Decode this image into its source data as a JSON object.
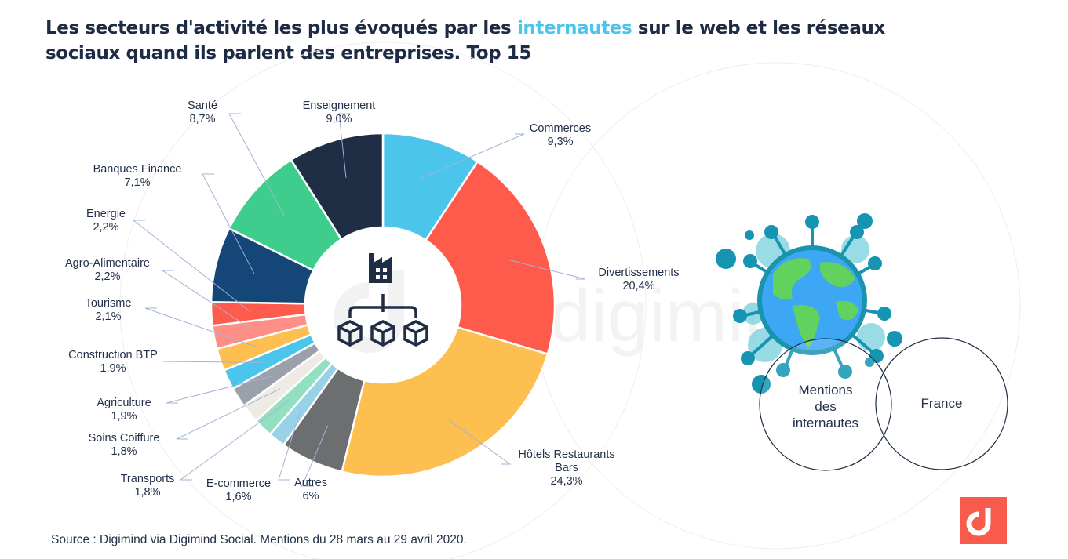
{
  "title": {
    "part1": "Les secteurs d'activité les plus évoqués par les ",
    "highlight": "internautes",
    "part2": " sur le web et les réseaux sociaux quand ils parlent des entreprises. Top  15"
  },
  "watermark": "digimind",
  "center_icon": "factory-hierarchy-icon",
  "venn": {
    "left": [
      "Mentions",
      "des",
      "internautes"
    ],
    "right": "France"
  },
  "illustration": "globe-virus-icon",
  "source": "Source : Digimind via Digimind Social. Mentions du 28 mars au 29 avril 2020.",
  "logo": "digimind-logo-icon",
  "colors": {
    "accent": "#4bc5ec",
    "title": "#1e2b45",
    "brand": "#f85a4b"
  },
  "chart_data": {
    "type": "pie",
    "variant": "donut",
    "title": "Les secteurs d'activité les plus évoqués par les internautes sur le web et les réseaux sociaux quand ils parlent des entreprises. Top 15",
    "start": "top",
    "direction": "clockwise",
    "unit": "%",
    "slices": [
      {
        "label": "Commerces",
        "value": 9.3,
        "display": "9,3%",
        "color": "#4bc5ec"
      },
      {
        "label": "Divertissements",
        "value": 20.4,
        "display": "20,4%",
        "color": "#fe5b4c"
      },
      {
        "label": "Hôtels Restaurants Bars",
        "value": 24.3,
        "display": "24,3%",
        "color": "#fdbf4f"
      },
      {
        "label": "Autres",
        "value": 6,
        "display": "6%",
        "color": "#6d6e70"
      },
      {
        "label": "E-commerce",
        "value": 1.6,
        "display": "1,6%",
        "color": "#97d2e8"
      },
      {
        "label": "Transports",
        "value": 1.8,
        "display": "1,8%",
        "color": "#92e0bf"
      },
      {
        "label": "Soins Coiffure",
        "value": 1.8,
        "display": "1,8%",
        "color": "#eeebe5"
      },
      {
        "label": "Agriculture",
        "value": 1.9,
        "display": "1,9%",
        "color": "#9aa1aa"
      },
      {
        "label": "Construction BTP",
        "value": 1.9,
        "display": "1,9%",
        "color": "#4bc5ec"
      },
      {
        "label": "Tourisme",
        "value": 2.1,
        "display": "2,1%",
        "color": "#fdbf4f"
      },
      {
        "label": "Agro-Alimentaire",
        "value": 2.2,
        "display": "2,2%",
        "color": "#ff8f86"
      },
      {
        "label": "Energie",
        "value": 2.2,
        "display": "2,2%",
        "color": "#fe5b4c"
      },
      {
        "label": "Banques Finance",
        "value": 7.1,
        "display": "7,1%",
        "color": "#144677"
      },
      {
        "label": "Santé",
        "value": 8.7,
        "display": "8,7%",
        "color": "#3ecd8d"
      },
      {
        "label": "Enseignement",
        "value": 9.0,
        "display": "9,0%",
        "color": "#1f2d45"
      }
    ]
  }
}
